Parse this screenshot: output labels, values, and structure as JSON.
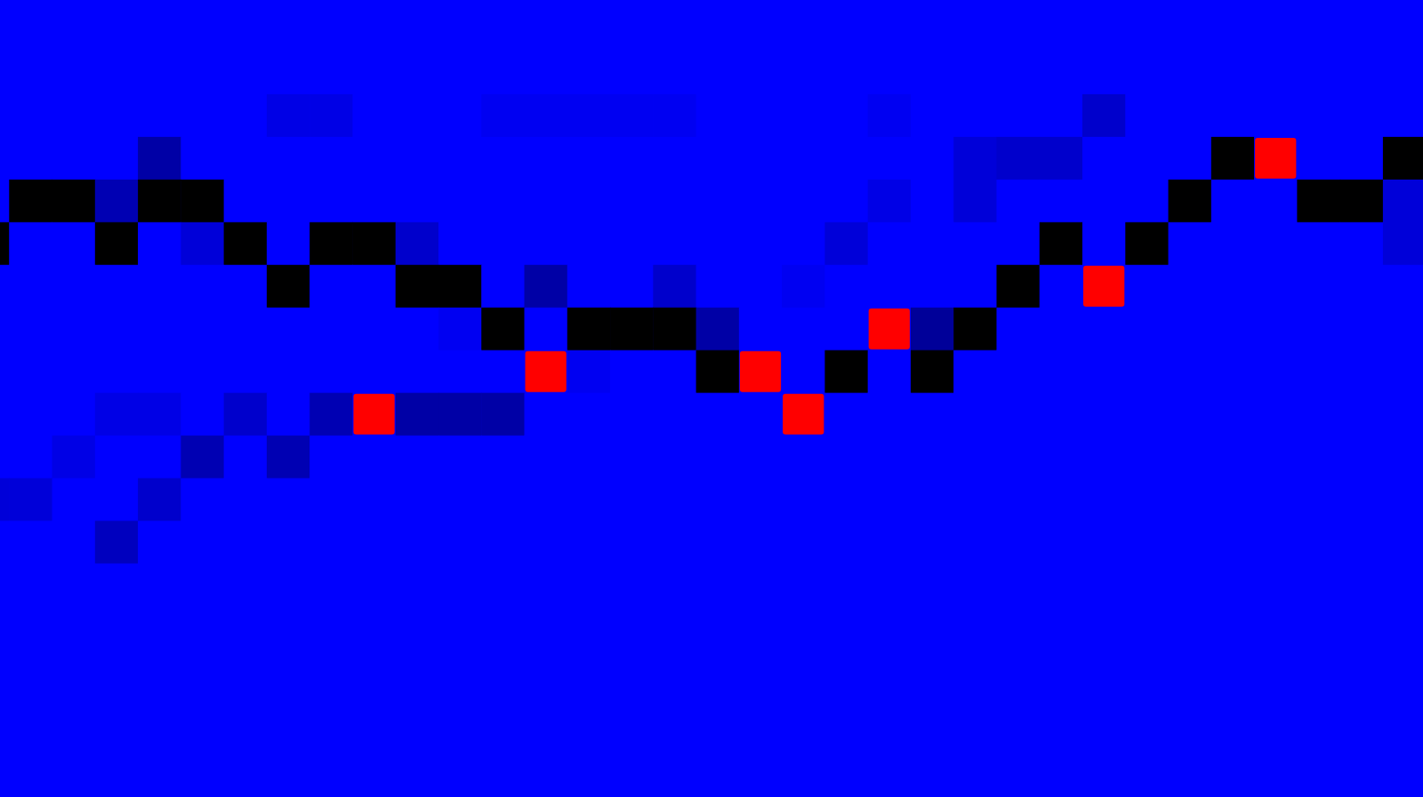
{
  "chart_data": {
    "type": "heatmap",
    "tick_labels": false,
    "zlim": [
      0,
      1
    ],
    "cells": [
      [
        0,
        0,
        0,
        0,
        0,
        0,
        0,
        0,
        0,
        0,
        0,
        0,
        0,
        0,
        0,
        0,
        0,
        0,
        0,
        0,
        0,
        0,
        0,
        0,
        0,
        0,
        0,
        0,
        0,
        0,
        0,
        0,
        0,
        0
      ],
      [
        0,
        0,
        0,
        0,
        0,
        0,
        0,
        0,
        0,
        0,
        0,
        0,
        0,
        0,
        0,
        0,
        0,
        0,
        0,
        0,
        0,
        0,
        0,
        0,
        0,
        0,
        0,
        0,
        0,
        0,
        0,
        0,
        0,
        0
      ],
      [
        0,
        0,
        0,
        0,
        0,
        0,
        0,
        0.1,
        0.1,
        0,
        0,
        0,
        0.05,
        0.05,
        0.05,
        0.05,
        0.05,
        0,
        0,
        0,
        0,
        0.05,
        0,
        0,
        0,
        0,
        0.2,
        0,
        0,
        0,
        0,
        0,
        0,
        0
      ],
      [
        0,
        0,
        0,
        0,
        0.35,
        0,
        0,
        0,
        0,
        0,
        0,
        0,
        0,
        0,
        0,
        0,
        0,
        0,
        0,
        0,
        0,
        0,
        0,
        0.15,
        0.2,
        0.2,
        0,
        0,
        0,
        1,
        0,
        0,
        0,
        1
      ],
      [
        0,
        1,
        1,
        0.3,
        1,
        1,
        0,
        0,
        0,
        0,
        0,
        0,
        0,
        0,
        0,
        0,
        0,
        0,
        0,
        0,
        0,
        0.1,
        0,
        0.15,
        0,
        0,
        0,
        0,
        1,
        0,
        0,
        1,
        1,
        0.15
      ],
      [
        1,
        0,
        0,
        1,
        0,
        0.15,
        1,
        0,
        1,
        1,
        0.2,
        0,
        0,
        0,
        0,
        0,
        0,
        0,
        0,
        0,
        0.15,
        0,
        0,
        0,
        0,
        1,
        0,
        1,
        0,
        0,
        0,
        0,
        0,
        0.15
      ],
      [
        0,
        0,
        0,
        0,
        0,
        0,
        0,
        1,
        0,
        0,
        1,
        1,
        0,
        0.35,
        0,
        0,
        0.2,
        0,
        0,
        0.05,
        0,
        0,
        0,
        0,
        1,
        0,
        0,
        0,
        0,
        0,
        0,
        0,
        0,
        0
      ],
      [
        0,
        0,
        0,
        0,
        0,
        0,
        0,
        0,
        0,
        0,
        0,
        0.05,
        1,
        0,
        1,
        1,
        1,
        0.35,
        0,
        0,
        0,
        0,
        0.4,
        1,
        0,
        0,
        0,
        0,
        0,
        0,
        0,
        0,
        0,
        0
      ],
      [
        0,
        0,
        0,
        0,
        0,
        0,
        0,
        0,
        0,
        0,
        0,
        0,
        0,
        0,
        0.05,
        0,
        0,
        1,
        0,
        0,
        1,
        0,
        1,
        0,
        0,
        0,
        0,
        0,
        0,
        0,
        0,
        0,
        0,
        0
      ],
      [
        0,
        0,
        0,
        0.1,
        0.1,
        0,
        0.2,
        0,
        0.3,
        0,
        0.35,
        0.35,
        0.35,
        0,
        0,
        0,
        0,
        0,
        0,
        0,
        0,
        0,
        0,
        0,
        0,
        0,
        0,
        0,
        0,
        0,
        0,
        0,
        0,
        0
      ],
      [
        0,
        0,
        0.1,
        0,
        0,
        0.3,
        0,
        0.3,
        0,
        0,
        0,
        0,
        0,
        0,
        0,
        0,
        0,
        0,
        0,
        0,
        0,
        0,
        0,
        0,
        0,
        0,
        0,
        0,
        0,
        0,
        0,
        0,
        0,
        0
      ],
      [
        0.15,
        0.15,
        0,
        0,
        0.2,
        0,
        0,
        0,
        0,
        0,
        0,
        0,
        0,
        0,
        0,
        0,
        0,
        0,
        0,
        0,
        0,
        0,
        0,
        0,
        0,
        0,
        0,
        0,
        0,
        0,
        0,
        0,
        0,
        0
      ],
      [
        0,
        0,
        0,
        0.25,
        0,
        0,
        0,
        0,
        0,
        0,
        0,
        0,
        0,
        0,
        0,
        0,
        0,
        0,
        0,
        0,
        0,
        0,
        0,
        0,
        0,
        0,
        0,
        0,
        0,
        0,
        0,
        0,
        0,
        0
      ],
      [
        0,
        0,
        0,
        0,
        0,
        0,
        0,
        0,
        0,
        0,
        0,
        0,
        0,
        0,
        0,
        0,
        0,
        0,
        0,
        0,
        0,
        0,
        0,
        0,
        0,
        0,
        0,
        0,
        0,
        0,
        0,
        0,
        0,
        0
      ],
      [
        0,
        0,
        0,
        0,
        0,
        0,
        0,
        0,
        0,
        0,
        0,
        0,
        0,
        0,
        0,
        0,
        0,
        0,
        0,
        0,
        0,
        0,
        0,
        0,
        0,
        0,
        0,
        0,
        0,
        0,
        0,
        0,
        0,
        0
      ],
      [
        0,
        0,
        0,
        0,
        0,
        0,
        0,
        0,
        0,
        0,
        0,
        0,
        0,
        0,
        0,
        0,
        0,
        0,
        0,
        0,
        0,
        0,
        0,
        0,
        0,
        0,
        0,
        0,
        0,
        0,
        0,
        0,
        0,
        0
      ],
      [
        0,
        0,
        0,
        0,
        0,
        0,
        0,
        0,
        0,
        0,
        0,
        0,
        0,
        0,
        0,
        0,
        0,
        0,
        0,
        0,
        0,
        0,
        0,
        0,
        0,
        0,
        0,
        0,
        0,
        0,
        0,
        0,
        0,
        0
      ],
      [
        0,
        0,
        0,
        0,
        0,
        0,
        0,
        0,
        0,
        0,
        0,
        0,
        0,
        0,
        0,
        0,
        0,
        0,
        0,
        0,
        0,
        0,
        0,
        0,
        0,
        0,
        0,
        0,
        0,
        0,
        0,
        0,
        0,
        0
      ],
      [
        0,
        0,
        0,
        0,
        0,
        0,
        0,
        0,
        0,
        0,
        0,
        0,
        0,
        0,
        0,
        0,
        0,
        0,
        0,
        0,
        0,
        0,
        0,
        0,
        0,
        0,
        0,
        0,
        0,
        0,
        0,
        0,
        0,
        0
      ]
    ],
    "highlights": [
      [
        3,
        30
      ],
      [
        6,
        26
      ],
      [
        7,
        21
      ],
      [
        8,
        13
      ],
      [
        8,
        18
      ],
      [
        9,
        9
      ],
      [
        9,
        19
      ]
    ]
  }
}
